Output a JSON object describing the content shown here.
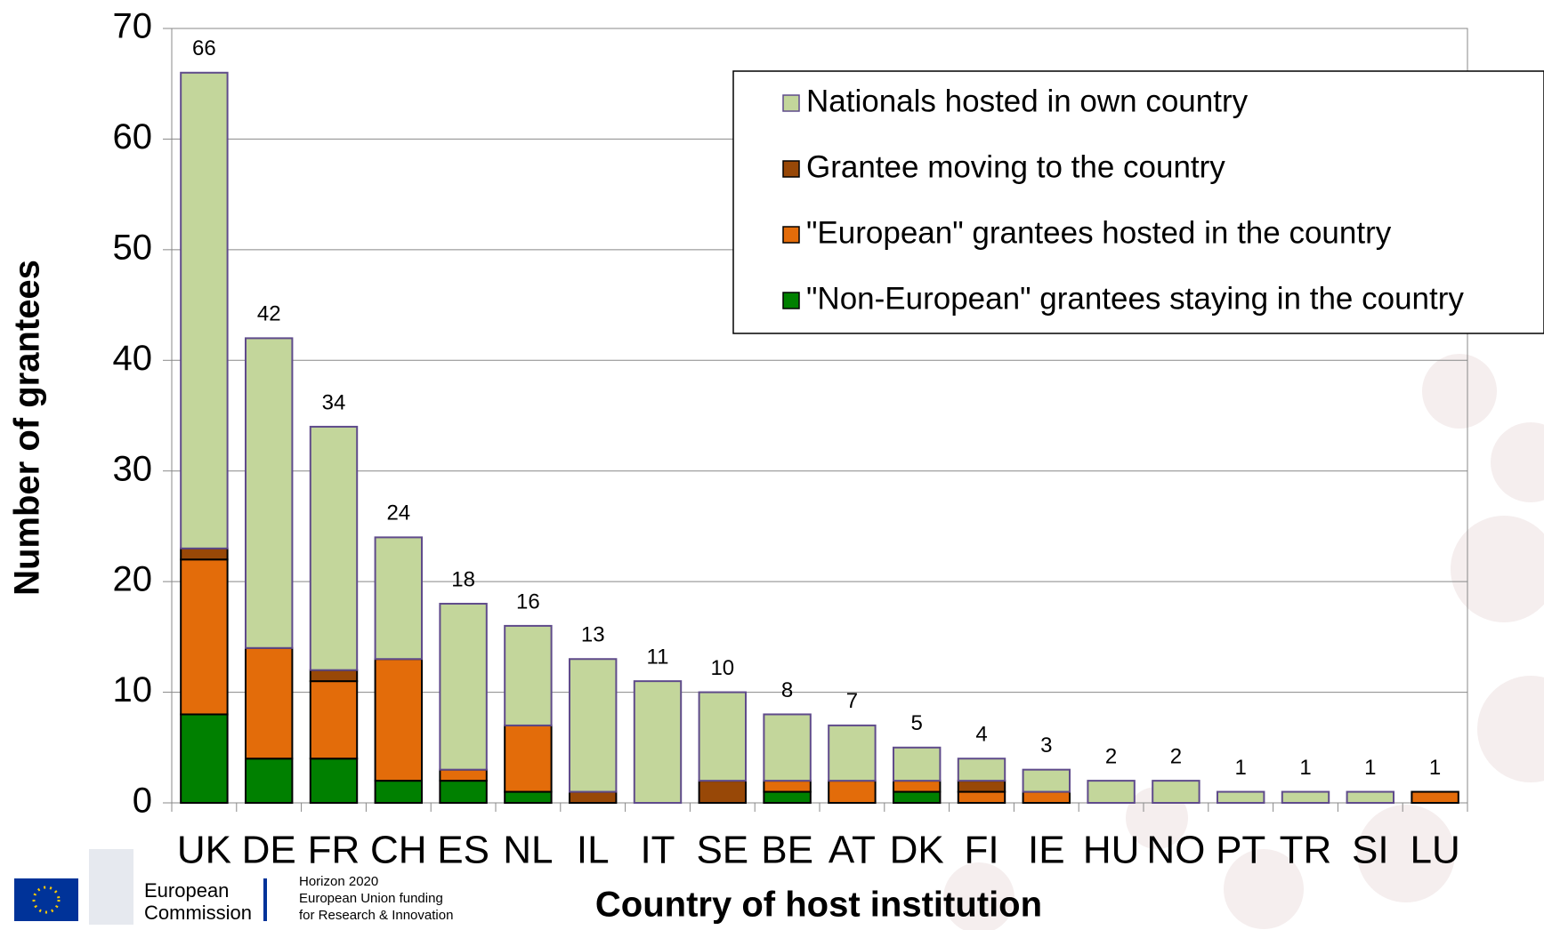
{
  "chart_data": {
    "type": "stacked_bar",
    "xlabel": "Country of host institution",
    "ylabel": "Number of grantees",
    "categories": [
      "UK",
      "DE",
      "FR",
      "CH",
      "ES",
      "NL",
      "IL",
      "IT",
      "SE",
      "BE",
      "AT",
      "DK",
      "FI",
      "IE",
      "HU",
      "NO",
      "PT",
      "TR",
      "SI",
      "LU"
    ],
    "series": [
      {
        "name": "\"Non-European\" grantees staying in the country",
        "color": "#008000",
        "values": [
          8,
          4,
          4,
          2,
          2,
          1,
          0,
          0,
          0,
          1,
          0,
          1,
          0,
          0,
          0,
          0,
          0,
          0,
          0,
          0
        ]
      },
      {
        "name": "\"European\" grantees hosted in the country",
        "color": "#e36c0a",
        "values": [
          14,
          10,
          7,
          11,
          1,
          6,
          0,
          0,
          0,
          1,
          2,
          1,
          1,
          1,
          0,
          0,
          0,
          0,
          0,
          1
        ]
      },
      {
        "name": "Grantee moving to the country",
        "color": "#984807",
        "values": [
          1,
          0,
          1,
          0,
          0,
          0,
          1,
          0,
          2,
          0,
          0,
          0,
          1,
          0,
          0,
          0,
          0,
          0,
          0,
          0
        ]
      },
      {
        "name": "Nationals hosted in own country",
        "color": "#c3d69b",
        "values": [
          43,
          28,
          22,
          11,
          15,
          9,
          12,
          11,
          8,
          6,
          5,
          3,
          2,
          2,
          2,
          2,
          1,
          1,
          1,
          0
        ]
      }
    ],
    "totals": [
      66,
      42,
      34,
      24,
      18,
      16,
      13,
      11,
      10,
      8,
      7,
      5,
      4,
      3,
      2,
      2,
      1,
      1,
      1,
      1
    ],
    "ylim": [
      0,
      70
    ],
    "yticks": [
      0,
      10,
      20,
      30,
      40,
      50,
      60,
      70
    ],
    "grid": true,
    "legend": "upper right"
  },
  "footer": {
    "org": [
      "European",
      "Commission"
    ],
    "program": [
      "Horizon 2020",
      "European Union funding",
      "for Research & Innovation"
    ]
  }
}
